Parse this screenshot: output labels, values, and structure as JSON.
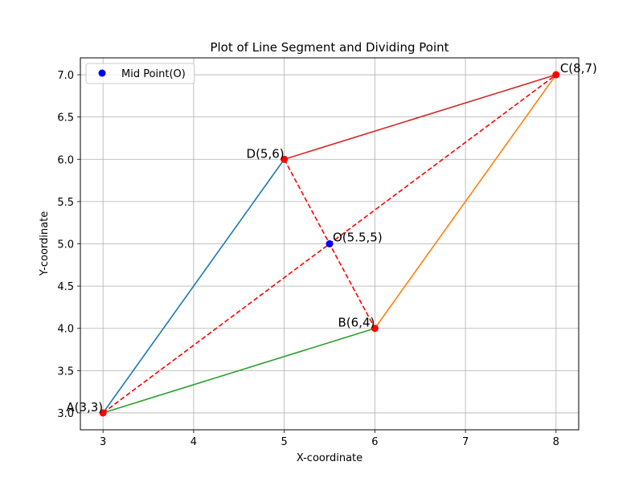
{
  "chart_data": {
    "type": "line",
    "title": "Plot of Line Segment and Dividing Point",
    "xlabel": "X-coordinate",
    "ylabel": "Y-coordinate",
    "xlim": [
      2.75,
      8.25
    ],
    "ylim": [
      2.8,
      7.2
    ],
    "xticks": [
      3,
      4,
      5,
      6,
      7,
      8
    ],
    "yticks": [
      3.0,
      3.5,
      4.0,
      4.5,
      5.0,
      5.5,
      6.0,
      6.5,
      7.0
    ],
    "grid": true,
    "legend": {
      "placement": "top-left",
      "entries": [
        "Mid Point(O)"
      ]
    },
    "points": [
      {
        "label": "A(3,3)",
        "x": 3,
        "y": 3
      },
      {
        "label": "B(6,4)",
        "x": 6,
        "y": 4
      },
      {
        "label": "C(8,7)",
        "x": 8,
        "y": 7
      },
      {
        "label": "D(5,6)",
        "x": 5,
        "y": 6
      },
      {
        "label": "O(5.5,5)",
        "x": 5.5,
        "y": 5
      }
    ],
    "segments": [
      {
        "from": [
          3,
          3
        ],
        "to": [
          5,
          6
        ],
        "color": "#1f77b4",
        "style": "solid"
      },
      {
        "from": [
          6,
          4
        ],
        "to": [
          8,
          7
        ],
        "color": "#ff7f0e",
        "style": "solid"
      },
      {
        "from": [
          3,
          3
        ],
        "to": [
          6,
          4
        ],
        "color": "#2ca02c",
        "style": "solid"
      },
      {
        "from": [
          5,
          6
        ],
        "to": [
          8,
          7
        ],
        "color": "#d62728",
        "style": "solid"
      },
      {
        "from": [
          3,
          3
        ],
        "to": [
          8,
          7
        ],
        "color": "#ff0000",
        "style": "dashed"
      },
      {
        "from": [
          5,
          6
        ],
        "to": [
          6,
          4
        ],
        "color": "#ff0000",
        "style": "dashed"
      }
    ],
    "markers": [
      {
        "x": 3,
        "y": 3,
        "color": "#ff0000"
      },
      {
        "x": 6,
        "y": 4,
        "color": "#ff0000"
      },
      {
        "x": 8,
        "y": 7,
        "color": "#ff0000"
      },
      {
        "x": 5,
        "y": 6,
        "color": "#ff0000"
      },
      {
        "x": 5.5,
        "y": 5,
        "color": "#0000ff"
      }
    ],
    "colors": {
      "midpoint": "#0000ff",
      "vertex": "#ff0000",
      "grid": "#b0b0b0"
    }
  }
}
